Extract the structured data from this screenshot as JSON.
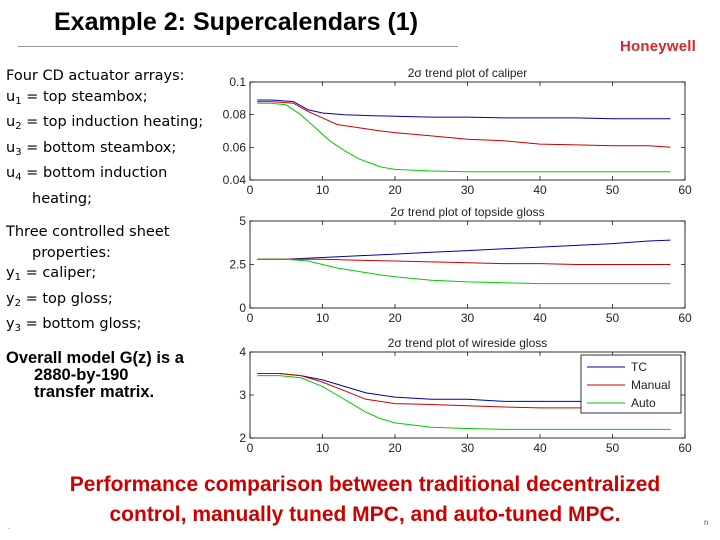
{
  "title": "Example 2: Supercalendars (1)",
  "logo": "Honeywell",
  "actuators": {
    "heading": "Four CD actuator arrays:",
    "items": [
      {
        "sym": "u",
        "sub": "1",
        "text": " = top steambox;"
      },
      {
        "sym": "u",
        "sub": "2",
        "text": " = top induction heating;"
      },
      {
        "sym": "u",
        "sub": "3",
        "text": " = bottom steambox;"
      },
      {
        "sym": "u",
        "sub": "4",
        "text": " = bottom induction"
      }
    ],
    "continuation": "heating;"
  },
  "properties": {
    "heading_line1": "Three controlled sheet",
    "heading_line2": "properties:",
    "items": [
      {
        "sym": "y",
        "sub": "1",
        "text": " = caliper;"
      },
      {
        "sym": "y",
        "sub": "2",
        "text": " = top gloss;"
      },
      {
        "sym": "y",
        "sub": "3",
        "text": " = bottom gloss;"
      }
    ]
  },
  "model": {
    "line1": "Overall model G(z) is a",
    "line2": "2880-by-190",
    "line3": "transfer matrix."
  },
  "bottom_caption": {
    "line1": "Performance comparison between traditional decentralized",
    "line2": "control, manually tuned MPC, and auto-tuned MPC."
  },
  "footer_mark": ".",
  "page_number": "n",
  "colors": {
    "tc": "#0000aa",
    "manual": "#cc0000",
    "auto": "#00cc00",
    "brand": "#d6252a",
    "caption": "#cc0000"
  },
  "chart_data": [
    {
      "type": "line",
      "title": "2σ trend plot of caliper",
      "xlim": [
        0,
        60
      ],
      "ylim": [
        0.04,
        0.1
      ],
      "xticks": [
        "0",
        "10",
        "20",
        "30",
        "40",
        "50",
        "60"
      ],
      "yticks": [
        "0.04",
        "0.06",
        "0.08",
        "0.1"
      ],
      "ytick_values": [
        0.04,
        0.06,
        0.08,
        0.1
      ],
      "series": [
        {
          "name": "TC",
          "x": [
            1,
            3,
            6,
            8,
            10,
            13,
            16,
            20,
            25,
            30,
            35,
            40,
            45,
            50,
            55,
            58
          ],
          "y": [
            0.089,
            0.089,
            0.088,
            0.083,
            0.081,
            0.08,
            0.0795,
            0.079,
            0.0785,
            0.0785,
            0.078,
            0.078,
            0.078,
            0.0775,
            0.0775,
            0.0775
          ]
        },
        {
          "name": "Manual",
          "x": [
            1,
            3,
            6,
            8,
            10,
            12,
            15,
            18,
            20,
            25,
            30,
            35,
            40,
            45,
            50,
            55,
            58
          ],
          "y": [
            0.088,
            0.088,
            0.087,
            0.082,
            0.078,
            0.074,
            0.072,
            0.07,
            0.069,
            0.067,
            0.065,
            0.064,
            0.062,
            0.0615,
            0.061,
            0.061,
            0.06
          ]
        },
        {
          "name": "Auto",
          "x": [
            1,
            3,
            5,
            7,
            9,
            11,
            13,
            15,
            18,
            20,
            25,
            30,
            35,
            40,
            45,
            50,
            55,
            58
          ],
          "y": [
            0.087,
            0.087,
            0.086,
            0.08,
            0.072,
            0.064,
            0.058,
            0.053,
            0.048,
            0.0465,
            0.0455,
            0.045,
            0.045,
            0.045,
            0.045,
            0.045,
            0.045,
            0.045
          ]
        }
      ]
    },
    {
      "type": "line",
      "title": "2σ trend plot of topside gloss",
      "xlim": [
        0,
        60
      ],
      "ylim": [
        0,
        5
      ],
      "xticks": [
        "0",
        "10",
        "20",
        "30",
        "40",
        "50",
        "60"
      ],
      "yticks": [
        "0",
        "2.5",
        "5"
      ],
      "ytick_values": [
        0,
        2.5,
        5
      ],
      "series": [
        {
          "name": "TC",
          "x": [
            1,
            5,
            10,
            15,
            20,
            25,
            30,
            35,
            40,
            45,
            50,
            55,
            58
          ],
          "y": [
            2.8,
            2.8,
            2.9,
            3.0,
            3.1,
            3.2,
            3.3,
            3.4,
            3.5,
            3.6,
            3.7,
            3.85,
            3.9
          ]
        },
        {
          "name": "Manual",
          "x": [
            1,
            5,
            10,
            15,
            20,
            25,
            30,
            35,
            40,
            45,
            50,
            55,
            58
          ],
          "y": [
            2.8,
            2.8,
            2.8,
            2.75,
            2.7,
            2.65,
            2.6,
            2.55,
            2.55,
            2.5,
            2.5,
            2.5,
            2.5
          ]
        },
        {
          "name": "Auto",
          "x": [
            1,
            5,
            8,
            10,
            12,
            15,
            18,
            20,
            25,
            30,
            35,
            40,
            45,
            50,
            55,
            58
          ],
          "y": [
            2.8,
            2.8,
            2.7,
            2.5,
            2.3,
            2.1,
            1.9,
            1.8,
            1.6,
            1.5,
            1.45,
            1.4,
            1.4,
            1.4,
            1.4,
            1.4
          ]
        }
      ]
    },
    {
      "type": "line",
      "title": "2σ trend plot of wireside gloss",
      "xlim": [
        0,
        60
      ],
      "ylim": [
        2,
        4
      ],
      "xticks": [
        "0",
        "10",
        "20",
        "30",
        "40",
        "50",
        "60"
      ],
      "yticks": [
        "2",
        "3",
        "4"
      ],
      "ytick_values": [
        2,
        3,
        4
      ],
      "legend": {
        "position": "top-right",
        "entries": [
          "TC",
          "Manual",
          "Auto"
        ]
      },
      "series": [
        {
          "name": "TC",
          "x": [
            1,
            4,
            7,
            10,
            13,
            16,
            20,
            25,
            30,
            35,
            40,
            45,
            50,
            55,
            58
          ],
          "y": [
            3.5,
            3.5,
            3.45,
            3.35,
            3.2,
            3.05,
            2.95,
            2.9,
            2.9,
            2.85,
            2.85,
            2.85,
            2.85,
            2.85,
            2.85
          ]
        },
        {
          "name": "Manual",
          "x": [
            1,
            4,
            7,
            10,
            13,
            16,
            20,
            25,
            30,
            35,
            40,
            45,
            50,
            55,
            58
          ],
          "y": [
            3.5,
            3.5,
            3.45,
            3.3,
            3.1,
            2.9,
            2.8,
            2.78,
            2.75,
            2.72,
            2.7,
            2.7,
            2.7,
            2.7,
            2.7
          ]
        },
        {
          "name": "Auto",
          "x": [
            1,
            4,
            7,
            10,
            12,
            14,
            16,
            18,
            20,
            25,
            30,
            35,
            40,
            45,
            50,
            55,
            58
          ],
          "y": [
            3.45,
            3.45,
            3.4,
            3.2,
            3.0,
            2.8,
            2.6,
            2.45,
            2.35,
            2.25,
            2.22,
            2.2,
            2.2,
            2.2,
            2.2,
            2.2,
            2.2
          ]
        }
      ]
    }
  ]
}
